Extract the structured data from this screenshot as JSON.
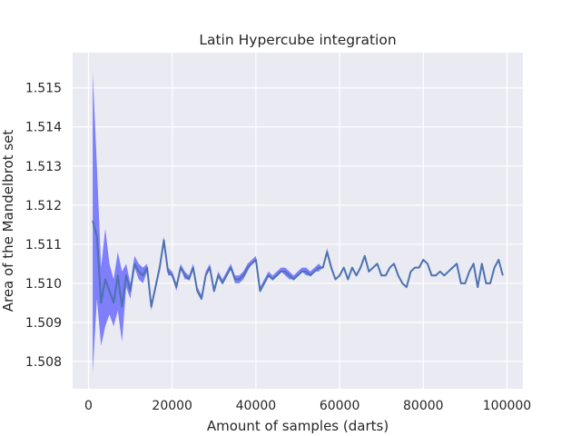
{
  "chart_data": {
    "type": "line",
    "title": "Latin Hypercube integration",
    "xlabel": "Amount of samples (darts)",
    "ylabel": "Area of the Mandelbrot set",
    "xlim": [
      -3800,
      103800
    ],
    "ylim": [
      1.5073,
      1.5159
    ],
    "x_ticks": [
      {
        "value": 0,
        "label": "0"
      },
      {
        "value": 20000,
        "label": "20000"
      },
      {
        "value": 40000,
        "label": "40000"
      },
      {
        "value": 60000,
        "label": "60000"
      },
      {
        "value": 80000,
        "label": "80000"
      },
      {
        "value": 100000,
        "label": "100000"
      }
    ],
    "y_ticks": [
      {
        "value": 1.508,
        "label": "1.508"
      },
      {
        "value": 1.509,
        "label": "1.509"
      },
      {
        "value": 1.51,
        "label": "1.510"
      },
      {
        "value": 1.511,
        "label": "1.511"
      },
      {
        "value": 1.512,
        "label": "1.512"
      },
      {
        "value": 1.513,
        "label": "1.513"
      },
      {
        "value": 1.514,
        "label": "1.514"
      },
      {
        "value": 1.515,
        "label": "1.515"
      }
    ],
    "grid": true,
    "colors": {
      "line": "#4c72b0",
      "band": "#5b5bff",
      "background": "#eaeaf2",
      "grid": "#ffffff"
    },
    "series": [
      {
        "x": [
          1000,
          2000,
          3000,
          4000,
          5000,
          6000,
          7000,
          8000,
          9000,
          10000,
          11000,
          12000,
          13000,
          14000,
          15000,
          16000,
          17000,
          18000,
          19000,
          20000,
          21000,
          22000,
          23000,
          24000,
          25000,
          26000,
          27000,
          28000,
          29000,
          30000,
          31000,
          32000,
          33000,
          34000,
          35000,
          36000,
          37000,
          38000,
          39000,
          40000,
          41000,
          42000,
          43000,
          44000,
          45000,
          46000,
          47000,
          48000,
          49000,
          50000,
          51000,
          52000,
          53000,
          54000,
          55000,
          56000,
          57000,
          58000,
          59000,
          60000,
          61000,
          62000,
          63000,
          64000,
          65000,
          66000,
          67000,
          68000,
          69000,
          70000,
          71000,
          72000,
          73000,
          74000,
          75000,
          76000,
          77000,
          78000,
          79000,
          80000,
          81000,
          82000,
          83000,
          84000,
          85000,
          86000,
          87000,
          88000,
          89000,
          90000,
          91000,
          92000,
          93000,
          94000,
          95000,
          96000,
          97000,
          98000,
          99000
        ],
        "y": [
          1.5116,
          1.5112,
          1.5095,
          1.5101,
          1.5098,
          1.5095,
          1.5102,
          1.5094,
          1.5102,
          1.5098,
          1.5105,
          1.5103,
          1.5102,
          1.5104,
          1.5094,
          1.5099,
          1.5104,
          1.5111,
          1.5103,
          1.5102,
          1.5099,
          1.5104,
          1.5102,
          1.5101,
          1.5104,
          1.5098,
          1.5096,
          1.5102,
          1.5104,
          1.5098,
          1.5102,
          1.51,
          1.5102,
          1.5104,
          1.5101,
          1.5101,
          1.5102,
          1.5104,
          1.5105,
          1.5106,
          1.5098,
          1.51,
          1.5102,
          1.5101,
          1.5102,
          1.5103,
          1.5103,
          1.5102,
          1.5101,
          1.5102,
          1.5103,
          1.5103,
          1.5102,
          1.5103,
          1.5104,
          1.5104,
          1.5108,
          1.5104,
          1.5101,
          1.5102,
          1.5104,
          1.5101,
          1.5104,
          1.5102,
          1.5104,
          1.5107,
          1.5103,
          1.5104,
          1.5105,
          1.5102,
          1.5102,
          1.5104,
          1.5105,
          1.5102,
          1.51,
          1.5099,
          1.5103,
          1.5104,
          1.5104,
          1.5106,
          1.5105,
          1.5102,
          1.5102,
          1.5103,
          1.5102,
          1.5103,
          1.5104,
          1.5105,
          1.51,
          1.51,
          1.5103,
          1.5105,
          1.5099,
          1.5105,
          1.51,
          1.51,
          1.5104,
          1.5106,
          1.5102
        ],
        "lower": [
          1.5077,
          1.5096,
          1.5084,
          1.5089,
          1.5092,
          1.5089,
          1.5093,
          1.5085,
          1.5099,
          1.5096,
          1.5104,
          1.5101,
          1.51,
          1.5103,
          1.5093,
          1.5099,
          1.5103,
          1.511,
          1.5102,
          1.5102,
          1.5098,
          1.5104,
          1.5101,
          1.5101,
          1.5104,
          1.5098,
          1.5096,
          1.5102,
          1.5104,
          1.5098,
          1.5102,
          1.51,
          1.5102,
          1.5104,
          1.51,
          1.51,
          1.5101,
          1.5103,
          1.5105,
          1.5106,
          1.5098,
          1.51,
          1.5102,
          1.5101,
          1.5102,
          1.5103,
          1.5102,
          1.5101,
          1.5101,
          1.5102,
          1.5103,
          1.5102,
          1.5102,
          1.5103,
          1.5103,
          1.5104,
          1.5108,
          1.5104,
          1.5101,
          1.5102,
          1.5104,
          1.5101,
          1.5104,
          1.5102,
          1.5104,
          1.5107,
          1.5103,
          1.5104,
          1.5105,
          1.5102,
          1.5102,
          1.5104,
          1.5105,
          1.5102,
          1.51,
          1.5099,
          1.5103,
          1.5104,
          1.5104,
          1.5106,
          1.5105,
          1.5102,
          1.5102,
          1.5103,
          1.5102,
          1.5103,
          1.5104,
          1.5105,
          1.51,
          1.51,
          1.5103,
          1.5105,
          1.5099,
          1.5105,
          1.51,
          1.51,
          1.5104,
          1.5106,
          1.5102
        ],
        "upper": [
          1.5154,
          1.513,
          1.5104,
          1.5114,
          1.5105,
          1.5101,
          1.5108,
          1.5103,
          1.5105,
          1.51,
          1.5107,
          1.5105,
          1.5104,
          1.5105,
          1.5095,
          1.51,
          1.5105,
          1.5112,
          1.5104,
          1.5103,
          1.51,
          1.5105,
          1.5103,
          1.5102,
          1.5105,
          1.5099,
          1.5097,
          1.5103,
          1.5105,
          1.5099,
          1.5103,
          1.5101,
          1.5103,
          1.5105,
          1.5102,
          1.5102,
          1.5103,
          1.5105,
          1.5106,
          1.5107,
          1.5099,
          1.5101,
          1.5103,
          1.5102,
          1.5103,
          1.5104,
          1.5104,
          1.5103,
          1.5102,
          1.5103,
          1.5104,
          1.5104,
          1.5103,
          1.5104,
          1.5105,
          1.5104,
          1.5109,
          1.5105,
          1.5101,
          1.5102,
          1.5104,
          1.5101,
          1.5104,
          1.5102,
          1.5104,
          1.5107,
          1.5103,
          1.5104,
          1.5105,
          1.5102,
          1.5102,
          1.5104,
          1.5105,
          1.5102,
          1.51,
          1.5099,
          1.5103,
          1.5104,
          1.5104,
          1.5106,
          1.5105,
          1.5102,
          1.5102,
          1.5103,
          1.5102,
          1.5103,
          1.5104,
          1.5105,
          1.51,
          1.51,
          1.5103,
          1.5105,
          1.5099,
          1.5105,
          1.51,
          1.51,
          1.5104,
          1.5106,
          1.5102
        ]
      }
    ]
  }
}
